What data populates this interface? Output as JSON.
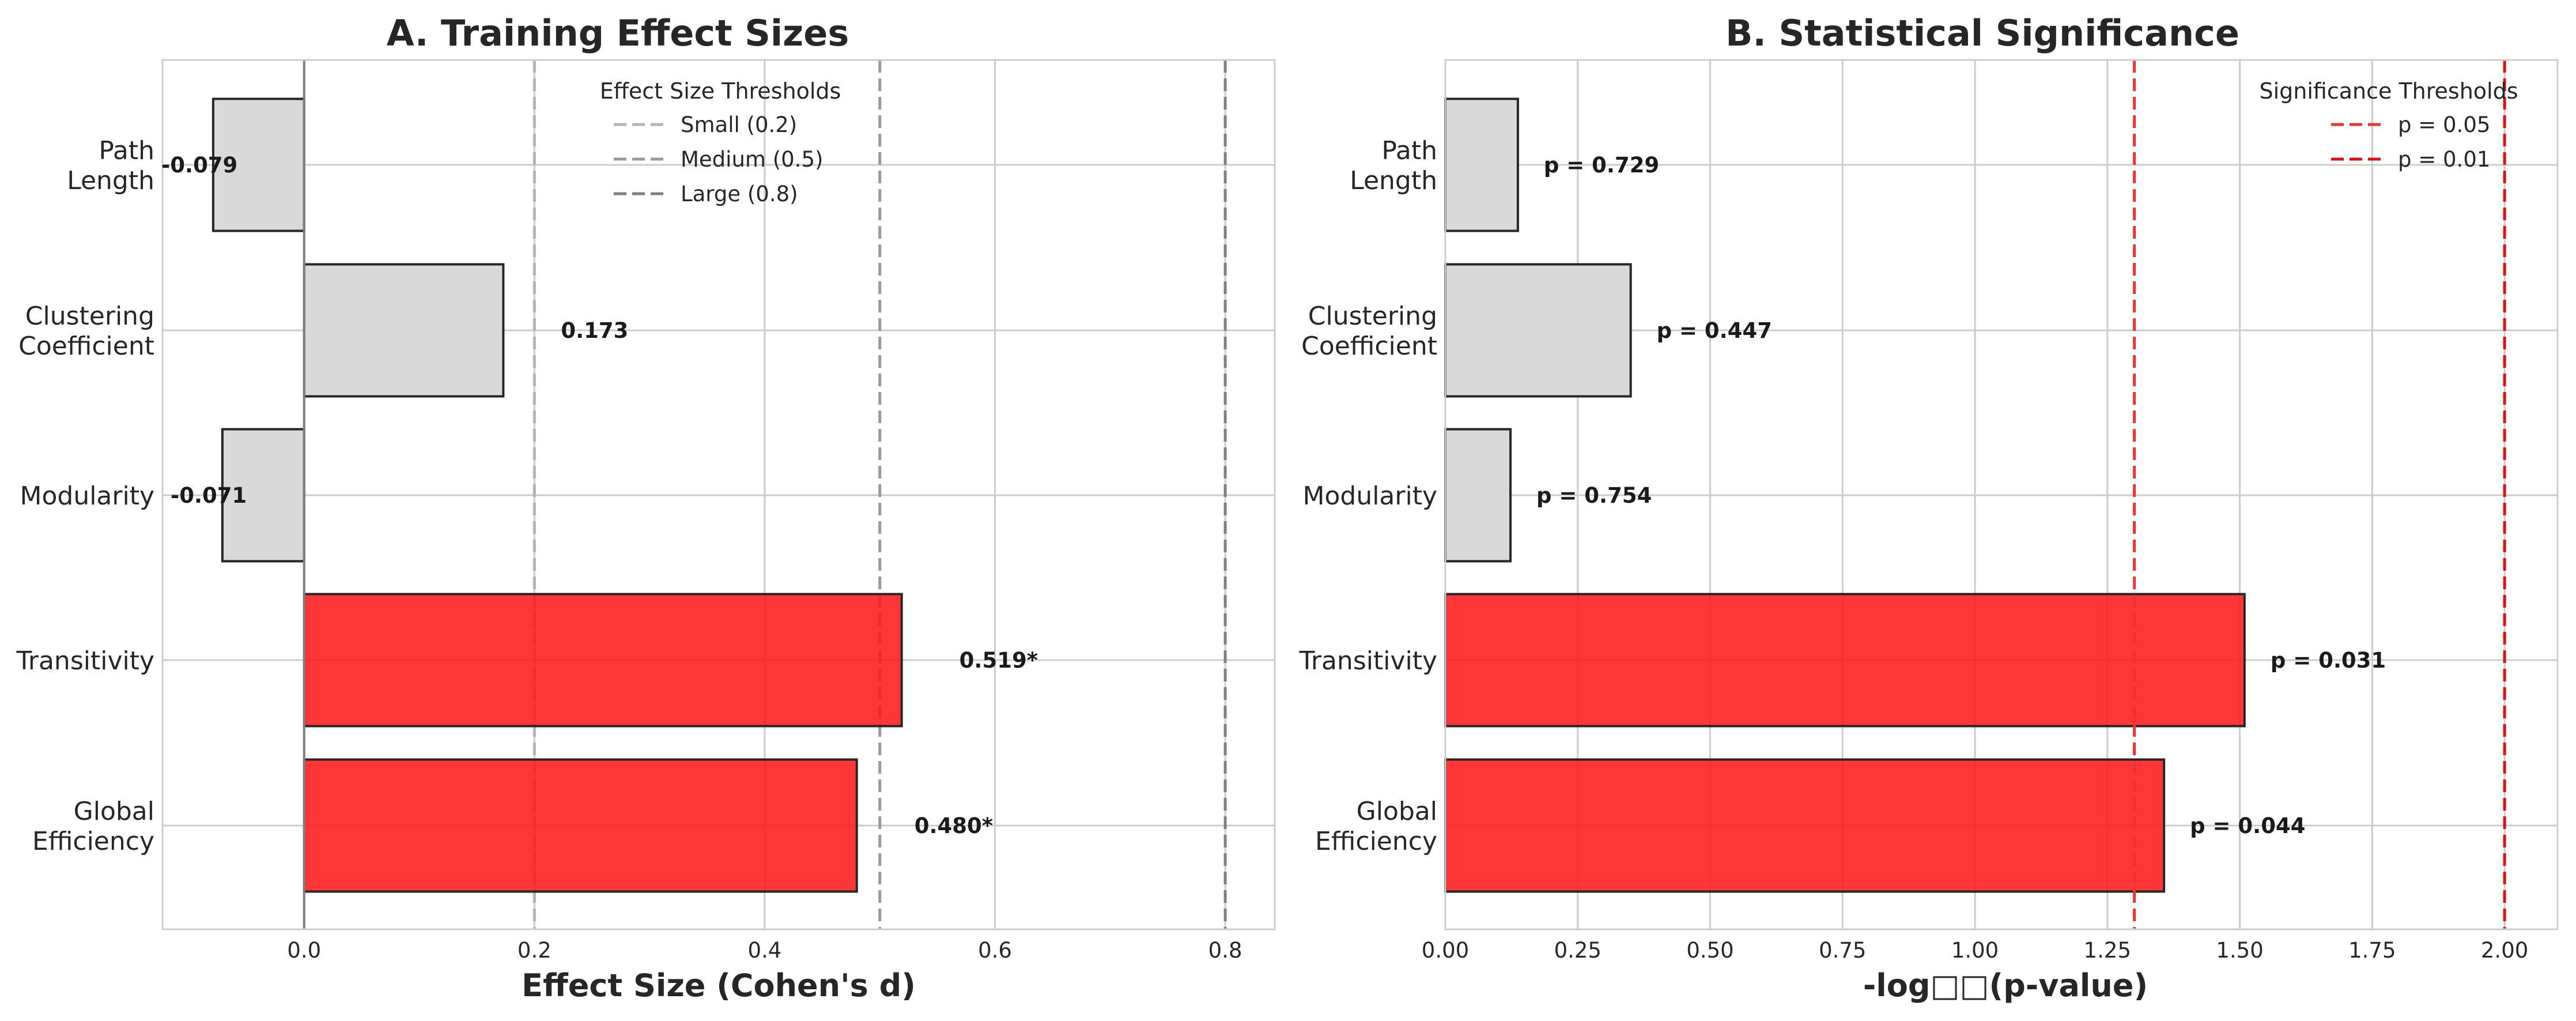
{
  "chart_data": [
    {
      "type": "bar",
      "orientation": "horizontal",
      "title": "A. Training Effect Sizes",
      "xlabel": "Effect Size (Cohen's d)",
      "ylabel": "",
      "xlim": [
        -0.123,
        0.843
      ],
      "xticks": [
        {
          "value": 0.0,
          "label": "0.0"
        },
        {
          "value": 0.2,
          "label": "0.2"
        },
        {
          "value": 0.4,
          "label": "0.4"
        },
        {
          "value": 0.6,
          "label": "0.6"
        },
        {
          "value": 0.8,
          "label": "0.8"
        }
      ],
      "categories": [
        {
          "line1": "Path",
          "line2": "Length"
        },
        {
          "line1": "Clustering",
          "line2": "Coefficient"
        },
        {
          "line1": "Modularity",
          "line2": ""
        },
        {
          "line1": "Transitivity",
          "line2": ""
        },
        {
          "line1": "Global",
          "line2": "Efficiency"
        }
      ],
      "values": [
        -0.079,
        0.173,
        -0.071,
        0.519,
        0.48
      ],
      "labels": [
        "-0.079",
        "0.173",
        "-0.071",
        "0.519*",
        "0.480*"
      ],
      "significant": [
        false,
        false,
        false,
        true,
        true
      ],
      "zero_line": 0.0,
      "reference_lines": [
        {
          "value": 0.2,
          "label": "Small (0.2)",
          "color": "#b3b3b3"
        },
        {
          "value": 0.5,
          "label": "Medium (0.5)",
          "color": "#999999"
        },
        {
          "value": 0.8,
          "label": "Large (0.8)",
          "color": "#808080"
        }
      ],
      "legend": {
        "title": "Effect Size Thresholds",
        "placement": "top-center"
      },
      "grid": true,
      "colors": {
        "significant": "#ff1a1a",
        "nonsignificant": "#d9d9d9",
        "edge": "#262626"
      }
    },
    {
      "type": "bar",
      "orientation": "horizontal",
      "title": "B. Statistical Significance",
      "xlabel": "-log□□(p-value)",
      "ylabel": "",
      "xlim": [
        0.0,
        2.1
      ],
      "xticks": [
        {
          "value": 0.0,
          "label": "0.00"
        },
        {
          "value": 0.25,
          "label": "0.25"
        },
        {
          "value": 0.5,
          "label": "0.50"
        },
        {
          "value": 0.75,
          "label": "0.75"
        },
        {
          "value": 1.0,
          "label": "1.00"
        },
        {
          "value": 1.25,
          "label": "1.25"
        },
        {
          "value": 1.5,
          "label": "1.50"
        },
        {
          "value": 1.75,
          "label": "1.75"
        },
        {
          "value": 2.0,
          "label": "2.00"
        }
      ],
      "categories": [
        {
          "line1": "Path",
          "line2": "Length"
        },
        {
          "line1": "Clustering",
          "line2": "Coefficient"
        },
        {
          "line1": "Modularity",
          "line2": ""
        },
        {
          "line1": "Transitivity",
          "line2": ""
        },
        {
          "line1": "Global",
          "line2": "Efficiency"
        }
      ],
      "values": [
        0.137,
        0.35,
        0.123,
        1.509,
        1.357
      ],
      "labels": [
        "p = 0.729",
        "p = 0.447",
        "p = 0.754",
        "p = 0.031",
        "p = 0.044"
      ],
      "significant": [
        false,
        false,
        false,
        true,
        true
      ],
      "reference_lines": [
        {
          "value": 1.301,
          "label": "p = 0.05",
          "color": "#ee3333"
        },
        {
          "value": 2.0,
          "label": "p = 0.01",
          "color": "#dd1111"
        }
      ],
      "legend": {
        "title": "Significance Thresholds",
        "placement": "top-right"
      },
      "grid": true,
      "colors": {
        "significant": "#ff1a1a",
        "nonsignificant": "#d9d9d9",
        "edge": "#262626"
      }
    }
  ]
}
